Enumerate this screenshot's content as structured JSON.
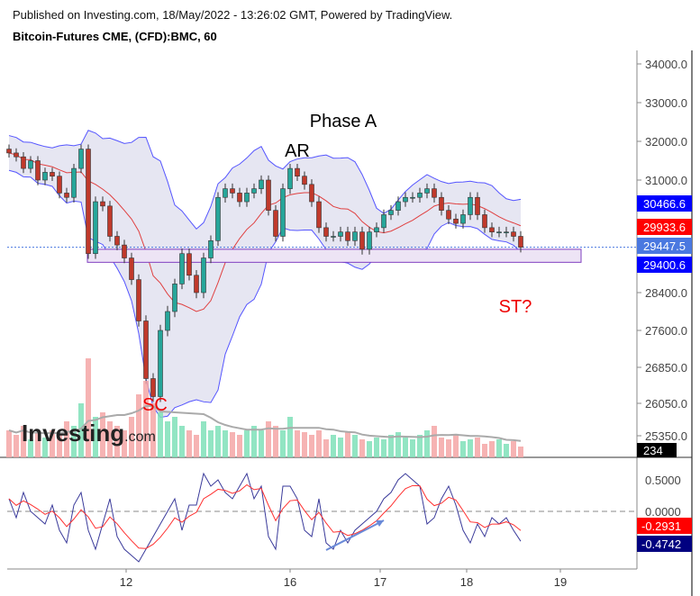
{
  "header": {
    "published": "Published on Investing.com, 18/May/2022 - 13:26:02 GMT, Powered by TradingView.",
    "symbol": "Bitcoin-Futures CME, (CFD):BMC, 60"
  },
  "logo": "Investing.com",
  "annotations": {
    "phase": "Phase A",
    "ar": "AR",
    "sc": "SC",
    "st": "ST?"
  },
  "chart_data": {
    "type": "candlestick",
    "price_ticks": [
      "34000.0",
      "33000.0",
      "32000.0",
      "31000.0",
      "28400.0",
      "27600.0",
      "26850.0",
      "26050.0",
      "25350.0"
    ],
    "price_labels": [
      {
        "value": "30466.6",
        "color": "#0000ff",
        "meaning": "bollinger upper"
      },
      {
        "value": "29933.6",
        "color": "#ff0000",
        "meaning": "bollinger basis"
      },
      {
        "value": "29447.5",
        "color": "#4a78e0",
        "meaning": "last price"
      },
      {
        "value": "29400.6",
        "color": "#0000ff",
        "meaning": "bollinger lower"
      }
    ],
    "volume_label": "234",
    "time_ticks": [
      "12",
      "16",
      "17",
      "18",
      "19"
    ],
    "close": [
      31700,
      31600,
      31300,
      31500,
      31000,
      31200,
      31100,
      30700,
      30600,
      31300,
      31800,
      29300,
      30500,
      30400,
      29700,
      29500,
      29200,
      28700,
      27800,
      26600,
      26200,
      27600,
      28000,
      28600,
      29300,
      28800,
      28400,
      29200,
      29600,
      30600,
      30800,
      30700,
      30500,
      30700,
      30800,
      31000,
      30300,
      29700,
      30800,
      31300,
      31100,
      30900,
      30500,
      29900,
      29700,
      29700,
      29800,
      29600,
      29800,
      29400,
      29800,
      29900,
      30200,
      30300,
      30500,
      30600,
      30600,
      30700,
      30800,
      30600,
      30300,
      30100,
      30000,
      30200,
      30600,
      30200,
      29900,
      29800,
      29800,
      29800,
      29700,
      29447.5
    ],
    "volume": [
      30,
      25,
      35,
      20,
      28,
      22,
      30,
      25,
      40,
      35,
      60,
      110,
      45,
      50,
      40,
      35,
      30,
      45,
      70,
      85,
      60,
      50,
      40,
      45,
      35,
      30,
      25,
      40,
      30,
      35,
      30,
      28,
      25,
      30,
      35,
      30,
      40,
      35,
      30,
      45,
      30,
      28,
      25,
      30,
      20,
      25,
      22,
      28,
      25,
      20,
      18,
      22,
      20,
      25,
      28,
      22,
      20,
      25,
      30,
      35,
      22,
      20,
      25,
      18,
      20,
      22,
      15,
      18,
      20,
      15,
      18,
      12
    ],
    "oscillator": {
      "ticks": [
        "0.5000",
        "0.0000"
      ],
      "last_labels": [
        {
          "value": "-0.2931",
          "color": "#ff0000"
        },
        {
          "value": "-0.4742",
          "color": "#000080"
        }
      ],
      "values": [
        0.2,
        -0.1,
        0.3,
        0,
        -0.1,
        -0.2,
        0.1,
        -0.3,
        -0.5,
        0.1,
        0.3,
        -0.3,
        -0.6,
        -0.2,
        0.2,
        -0.4,
        -0.6,
        -0.7,
        -0.8,
        -0.6,
        -0.4,
        -0.2,
        0,
        0.2,
        -0.3,
        0.1,
        0.1,
        0.6,
        0.4,
        0.5,
        0.3,
        0.2,
        0.4,
        0.6,
        0.2,
        0.4,
        -0.4,
        -0.6,
        0.4,
        0.4,
        0.2,
        -0.3,
        -0.4,
        0.2,
        -0.5,
        -0.6,
        -0.3,
        -0.5,
        -0.3,
        -0.2,
        -0.1,
        0,
        0.2,
        0.3,
        0.5,
        0.6,
        0.5,
        0.4,
        -0.2,
        -0.1,
        0.2,
        0.4,
        0.1,
        -0.3,
        -0.5,
        -0.2,
        -0.4,
        -0.1,
        -0.2,
        -0.1,
        -0.3,
        -0.4742
      ]
    },
    "support_zone": [
      29400.6,
      29100
    ],
    "colors": {
      "up": "#26a69a",
      "down": "#c0392b",
      "band": "#5555ff",
      "basis": "#e04040",
      "band_fill": "#e6e6f2",
      "zone": "#8040c0"
    }
  }
}
